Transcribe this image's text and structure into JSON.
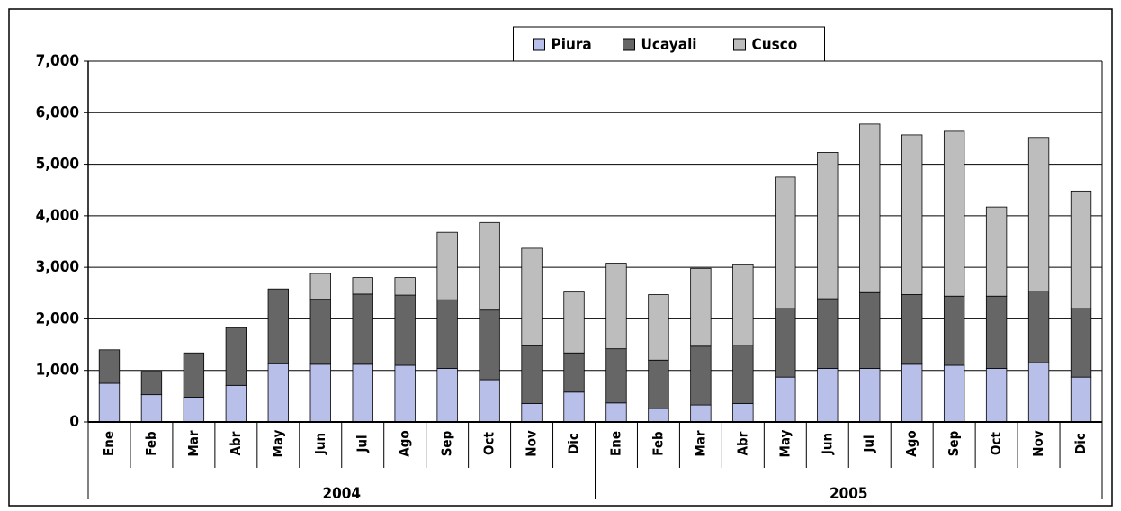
{
  "chart_data": {
    "type": "stacked_bar",
    "categories": [
      "Ene",
      "Feb",
      "Mar",
      "Abr",
      "May",
      "Jun",
      "Jul",
      "Ago",
      "Sep",
      "Oct",
      "Nov",
      "Dic",
      "Ene",
      "Feb",
      "Mar",
      "Abr",
      "May",
      "Jun",
      "Jul",
      "Ago",
      "Sep",
      "Oct",
      "Nov",
      "Dic"
    ],
    "groups": [
      "2004",
      "2005"
    ],
    "series": [
      {
        "name": "Piura",
        "color": "#b8bfe8",
        "values": [
          750,
          530,
          480,
          710,
          1130,
          1120,
          1120,
          1100,
          1040,
          820,
          360,
          580,
          370,
          260,
          330,
          360,
          870,
          1040,
          1040,
          1120,
          1100,
          1040,
          1150,
          870
        ]
      },
      {
        "name": "Ucayali",
        "color": "#666666",
        "values": [
          650,
          450,
          860,
          1120,
          1450,
          1260,
          1360,
          1360,
          1330,
          1350,
          1120,
          760,
          1050,
          940,
          1140,
          1130,
          1330,
          1350,
          1470,
          1350,
          1340,
          1400,
          1390,
          1330
        ]
      },
      {
        "name": "Cusco",
        "color": "#bdbdbd",
        "values": [
          0,
          0,
          0,
          0,
          0,
          500,
          320,
          340,
          1310,
          1700,
          1890,
          1180,
          1660,
          1270,
          1510,
          1560,
          2550,
          2840,
          3270,
          3100,
          3200,
          1730,
          2980,
          2280
        ]
      }
    ],
    "ylim": [
      0,
      7000
    ],
    "yticks": [
      0,
      {
        "value": 1000,
        "label": "1,000"
      },
      {
        "value": 2000,
        "label": "2,000"
      },
      {
        "value": 3000,
        "label": "3,000"
      },
      {
        "value": 4000,
        "label": "4,000"
      },
      {
        "value": 5000,
        "label": "5,000"
      },
      {
        "value": 6000,
        "label": "6,000"
      },
      {
        "value": 7000,
        "label": "7,000"
      }
    ],
    "grid": true,
    "legend": "top"
  }
}
